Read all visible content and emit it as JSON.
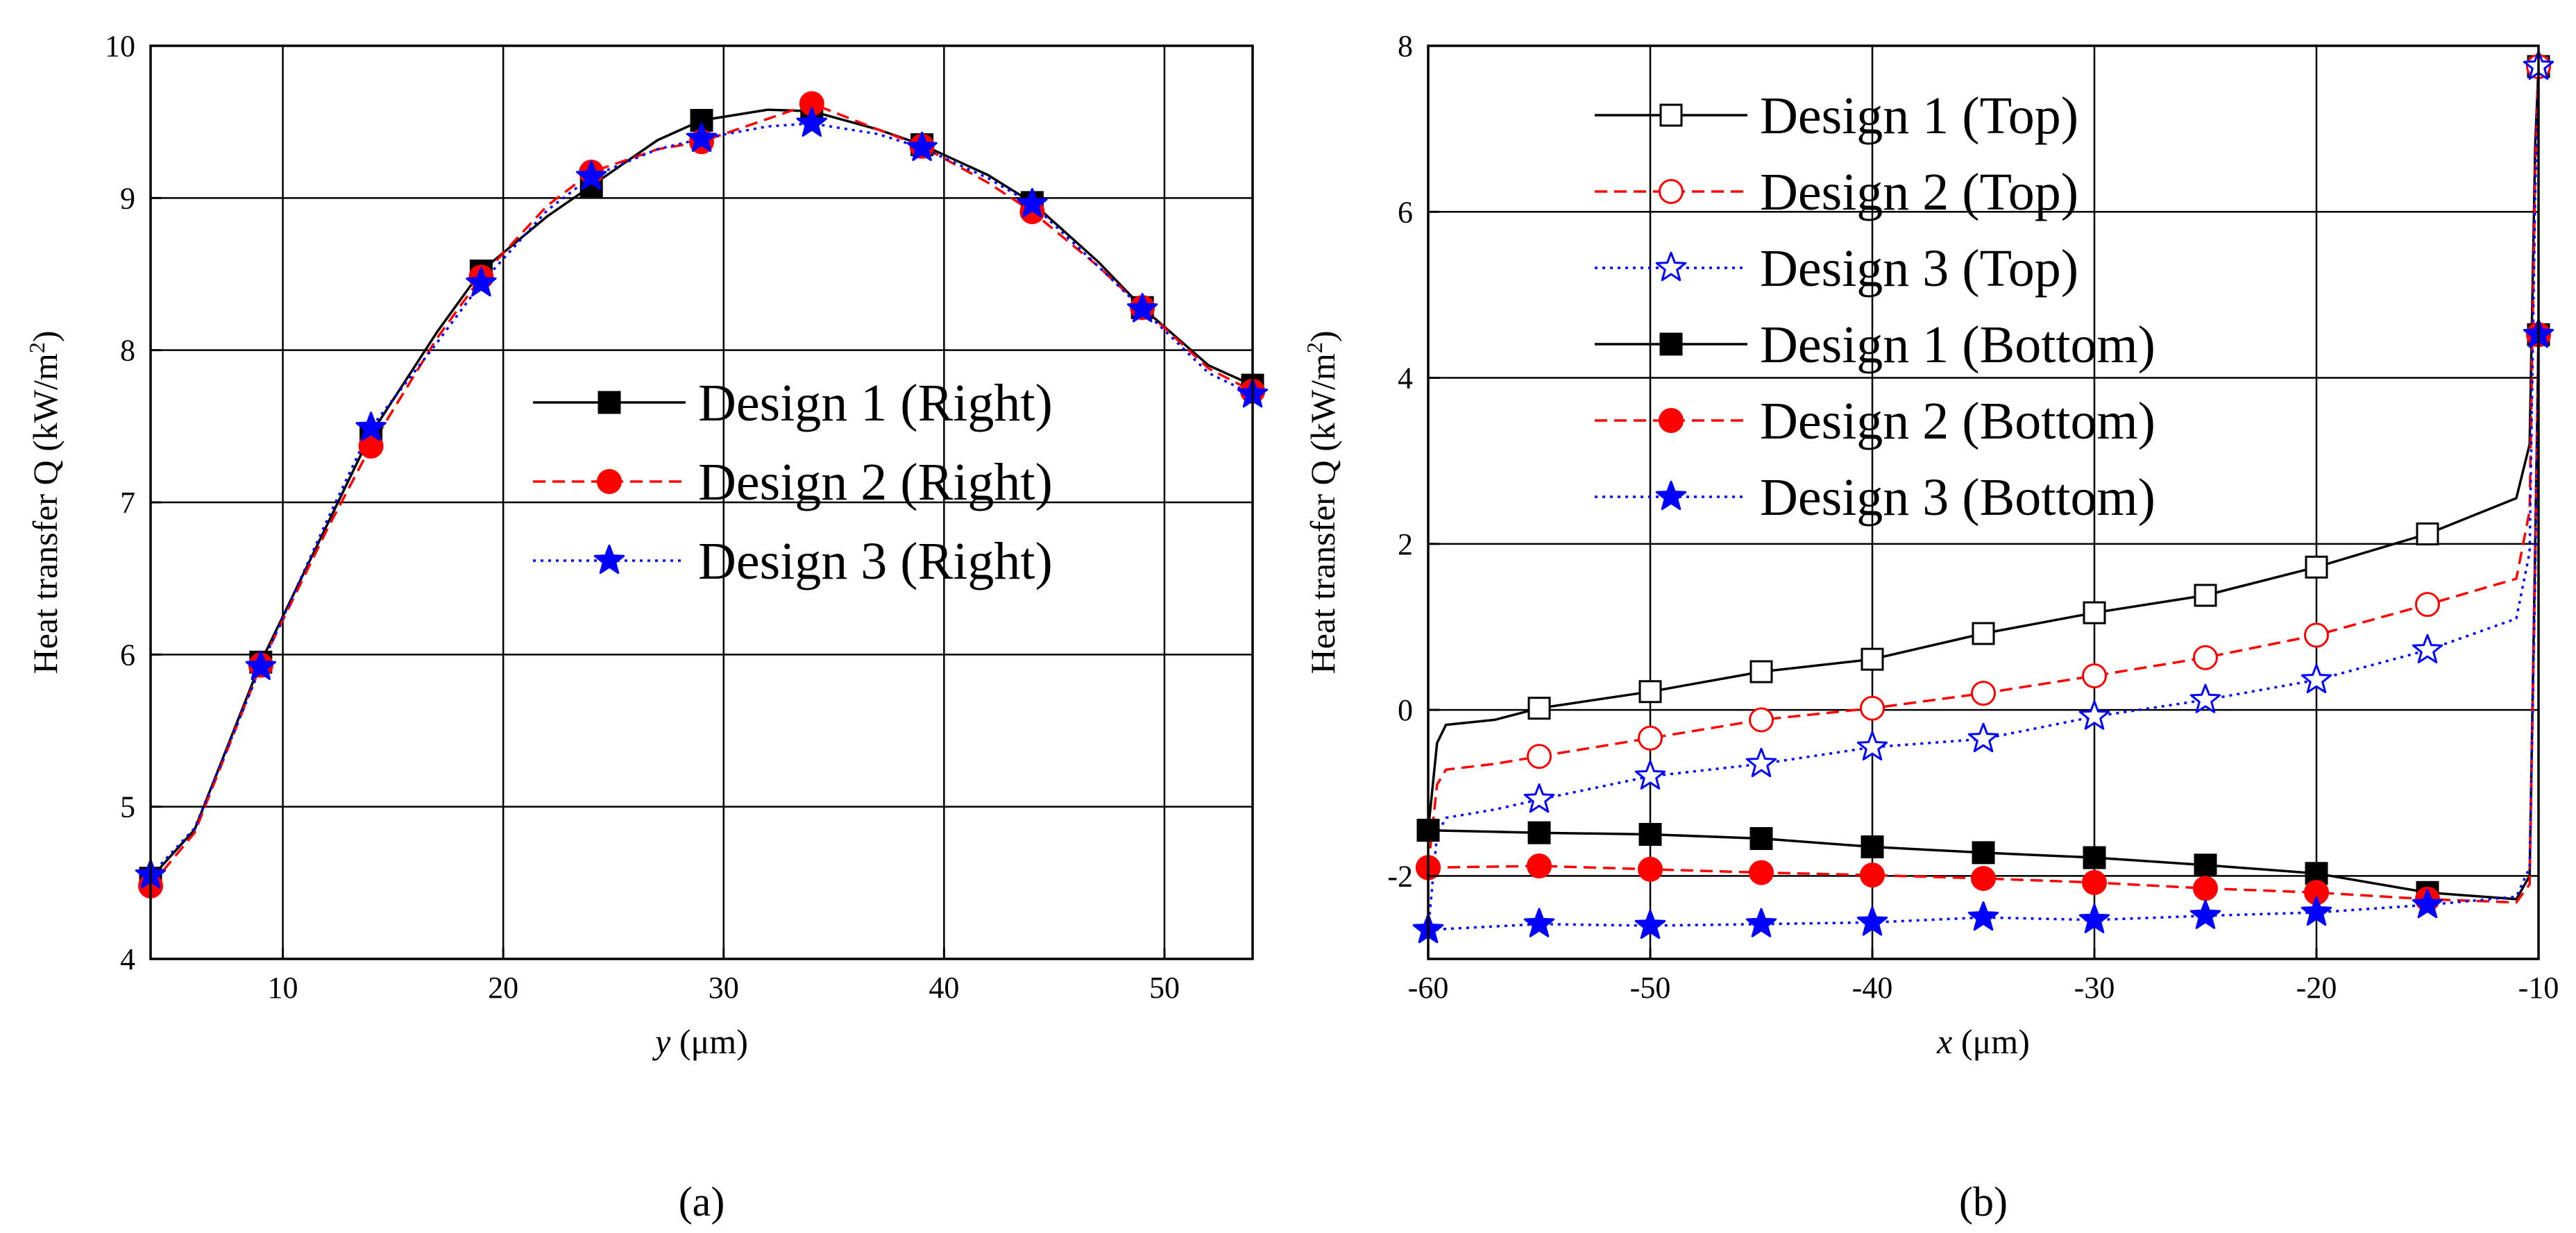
{
  "chart_data": [
    {
      "type": "line",
      "panel_label": "(a)",
      "xlabel_var": "y",
      "xlabel_unit": " (μm)",
      "ylabel": "Heat transfer Q (kW/m",
      "ylabel_sup": "2",
      "ylabel_close": ")",
      "xlim": [
        4,
        54
      ],
      "ylim": [
        4,
        10
      ],
      "xticks": [
        10,
        20,
        30,
        40,
        50
      ],
      "yticks": [
        4,
        5,
        6,
        7,
        8,
        9,
        10
      ],
      "grid": true,
      "legend_position": "center-right",
      "series": [
        {
          "name": "Design 1 (Right)",
          "color": "#000000",
          "dash": "solid",
          "marker": "square-filled",
          "x": [
            4,
            9,
            14,
            19,
            24,
            29,
            34,
            39,
            44,
            49,
            54
          ],
          "values": [
            4.53,
            5.95,
            7.45,
            8.52,
            9.08,
            9.51,
            9.57,
            9.35,
            8.97,
            8.28,
            7.77
          ],
          "curve": [
            [
              4,
              4.53
            ],
            [
              6,
              4.85
            ],
            [
              9,
              5.95
            ],
            [
              12,
              6.85
            ],
            [
              14,
              7.45
            ],
            [
              17,
              8.12
            ],
            [
              19,
              8.52
            ],
            [
              22,
              8.88
            ],
            [
              24,
              9.08
            ],
            [
              27,
              9.38
            ],
            [
              29,
              9.51
            ],
            [
              32,
              9.58
            ],
            [
              34,
              9.57
            ],
            [
              37,
              9.45
            ],
            [
              39,
              9.35
            ],
            [
              42,
              9.15
            ],
            [
              44,
              8.97
            ],
            [
              47,
              8.58
            ],
            [
              49,
              8.28
            ],
            [
              52,
              7.9
            ],
            [
              54,
              7.77
            ]
          ]
        },
        {
          "name": "Design 2 (Right)",
          "color": "#ff0000",
          "dash": "dashed",
          "marker": "circle-filled",
          "x": [
            4,
            9,
            14,
            19,
            24,
            29,
            34,
            39,
            44,
            49,
            54
          ],
          "values": [
            4.48,
            5.93,
            7.37,
            8.48,
            9.17,
            9.37,
            9.62,
            9.34,
            8.91,
            8.28,
            7.73
          ],
          "curve": [
            [
              4,
              4.48
            ],
            [
              6,
              4.83
            ],
            [
              9,
              5.93
            ],
            [
              12,
              6.82
            ],
            [
              14,
              7.37
            ],
            [
              17,
              8.08
            ],
            [
              19,
              8.48
            ],
            [
              22,
              8.95
            ],
            [
              24,
              9.17
            ],
            [
              27,
              9.32
            ],
            [
              29,
              9.37
            ],
            [
              32,
              9.52
            ],
            [
              34,
              9.62
            ],
            [
              37,
              9.45
            ],
            [
              39,
              9.34
            ],
            [
              42,
              9.1
            ],
            [
              44,
              8.91
            ],
            [
              47,
              8.55
            ],
            [
              49,
              8.28
            ],
            [
              52,
              7.88
            ],
            [
              54,
              7.73
            ]
          ]
        },
        {
          "name": "Design 3 (Right)",
          "color": "#0000ff",
          "dash": "dotted",
          "marker": "star-filled",
          "x": [
            4,
            9,
            14,
            19,
            24,
            29,
            34,
            39,
            44,
            49,
            54
          ],
          "values": [
            4.55,
            5.92,
            7.49,
            8.44,
            9.14,
            9.39,
            9.49,
            9.33,
            8.96,
            8.27,
            7.71
          ],
          "curve": [
            [
              4,
              4.55
            ],
            [
              6,
              4.86
            ],
            [
              9,
              5.92
            ],
            [
              12,
              6.88
            ],
            [
              14,
              7.49
            ],
            [
              17,
              8.05
            ],
            [
              19,
              8.44
            ],
            [
              22,
              8.92
            ],
            [
              24,
              9.14
            ],
            [
              27,
              9.32
            ],
            [
              29,
              9.39
            ],
            [
              32,
              9.47
            ],
            [
              34,
              9.49
            ],
            [
              37,
              9.42
            ],
            [
              39,
              9.33
            ],
            [
              42,
              9.13
            ],
            [
              44,
              8.96
            ],
            [
              47,
              8.55
            ],
            [
              49,
              8.27
            ],
            [
              52,
              7.85
            ],
            [
              54,
              7.71
            ]
          ]
        }
      ]
    },
    {
      "type": "line",
      "panel_label": "(b)",
      "xlabel_var": "x",
      "xlabel_unit": " (μm)",
      "ylabel": "Heat transfer Q (kW/m",
      "ylabel_sup": "2",
      "ylabel_close": ")",
      "xlim": [
        -60,
        -10
      ],
      "ylim": [
        -3,
        8
      ],
      "xticks": [
        -60,
        -50,
        -40,
        -30,
        -20,
        -10
      ],
      "yticks": [
        -2,
        0,
        2,
        4,
        6,
        8
      ],
      "grid": true,
      "legend_position": "top-left",
      "series": [
        {
          "name": "Design 1 (Top)",
          "color": "#000000",
          "dash": "solid",
          "marker": "square-open",
          "x": [
            -60,
            -55,
            -50,
            -45,
            -40,
            -35,
            -30,
            -25,
            -20,
            -15,
            -10
          ],
          "values": [
            -1.45,
            0.02,
            0.22,
            0.46,
            0.61,
            0.92,
            1.17,
            1.38,
            1.72,
            2.12,
            7.75
          ],
          "curve": [
            [
              -60,
              -1.45
            ],
            [
              -59.6,
              -0.4
            ],
            [
              -59.2,
              -0.18
            ],
            [
              -57,
              -0.12
            ],
            [
              -55,
              0.02
            ],
            [
              -50,
              0.22
            ],
            [
              -45,
              0.46
            ],
            [
              -40,
              0.61
            ],
            [
              -35,
              0.92
            ],
            [
              -30,
              1.17
            ],
            [
              -25,
              1.38
            ],
            [
              -20,
              1.72
            ],
            [
              -15,
              2.12
            ],
            [
              -11,
              2.55
            ],
            [
              -10.4,
              3.2
            ],
            [
              -10.15,
              6.8
            ],
            [
              -10,
              7.75
            ]
          ]
        },
        {
          "name": "Design 2 (Top)",
          "color": "#ff0000",
          "dash": "dashed",
          "marker": "circle-open",
          "x": [
            -60,
            -55,
            -50,
            -45,
            -40,
            -35,
            -30,
            -25,
            -20,
            -15,
            -10
          ],
          "values": [
            -1.9,
            -0.56,
            -0.34,
            -0.12,
            0.02,
            0.2,
            0.41,
            0.63,
            0.9,
            1.27,
            7.75
          ],
          "curve": [
            [
              -60,
              -1.9
            ],
            [
              -59.6,
              -0.9
            ],
            [
              -59.2,
              -0.72
            ],
            [
              -57,
              -0.65
            ],
            [
              -55,
              -0.56
            ],
            [
              -50,
              -0.34
            ],
            [
              -45,
              -0.12
            ],
            [
              -40,
              0.02
            ],
            [
              -35,
              0.2
            ],
            [
              -30,
              0.41
            ],
            [
              -25,
              0.63
            ],
            [
              -20,
              0.9
            ],
            [
              -15,
              1.27
            ],
            [
              -11,
              1.58
            ],
            [
              -10.4,
              2.4
            ],
            [
              -10.15,
              6.5
            ],
            [
              -10,
              7.75
            ]
          ]
        },
        {
          "name": "Design 3 (Top)",
          "color": "#0000ff",
          "dash": "dotted",
          "marker": "star-open",
          "x": [
            -60,
            -55,
            -50,
            -45,
            -40,
            -35,
            -30,
            -25,
            -20,
            -15,
            -10
          ],
          "values": [
            -2.65,
            -1.08,
            -0.8,
            -0.65,
            -0.45,
            -0.35,
            -0.08,
            0.12,
            0.36,
            0.72,
            7.75
          ],
          "curve": [
            [
              -60,
              -2.65
            ],
            [
              -59.6,
              -1.5
            ],
            [
              -59.2,
              -1.3
            ],
            [
              -57,
              -1.2
            ],
            [
              -55,
              -1.08
            ],
            [
              -50,
              -0.8
            ],
            [
              -45,
              -0.65
            ],
            [
              -40,
              -0.45
            ],
            [
              -35,
              -0.35
            ],
            [
              -30,
              -0.08
            ],
            [
              -25,
              0.12
            ],
            [
              -20,
              0.36
            ],
            [
              -15,
              0.72
            ],
            [
              -11,
              1.1
            ],
            [
              -10.4,
              1.9
            ],
            [
              -10.15,
              6.2
            ],
            [
              -10,
              7.75
            ]
          ]
        },
        {
          "name": "Design 1 (Bottom)",
          "color": "#000000",
          "dash": "solid",
          "marker": "square-filled",
          "x": [
            -60,
            -55,
            -50,
            -45,
            -40,
            -35,
            -30,
            -25,
            -20,
            -15,
            -10
          ],
          "values": [
            -1.45,
            -1.48,
            -1.5,
            -1.55,
            -1.65,
            -1.72,
            -1.78,
            -1.87,
            -1.97,
            -2.2,
            4.52
          ],
          "curve": [
            [
              -60,
              -1.45
            ],
            [
              -55,
              -1.48
            ],
            [
              -50,
              -1.5
            ],
            [
              -45,
              -1.55
            ],
            [
              -40,
              -1.65
            ],
            [
              -35,
              -1.72
            ],
            [
              -30,
              -1.78
            ],
            [
              -25,
              -1.87
            ],
            [
              -20,
              -1.97
            ],
            [
              -15,
              -2.2
            ],
            [
              -11,
              -2.28
            ],
            [
              -10.4,
              -2.0
            ],
            [
              -10.15,
              2.0
            ],
            [
              -10,
              4.52
            ]
          ]
        },
        {
          "name": "Design 2 (Bottom)",
          "color": "#ff0000",
          "dash": "dashed",
          "marker": "circle-filled",
          "x": [
            -60,
            -55,
            -50,
            -45,
            -40,
            -35,
            -30,
            -25,
            -20,
            -15,
            -10
          ],
          "values": [
            -1.9,
            -1.88,
            -1.92,
            -1.96,
            -1.99,
            -2.03,
            -2.08,
            -2.15,
            -2.2,
            -2.28,
            4.52
          ],
          "curve": [
            [
              -60,
              -1.9
            ],
            [
              -55,
              -1.88
            ],
            [
              -50,
              -1.92
            ],
            [
              -45,
              -1.96
            ],
            [
              -40,
              -1.99
            ],
            [
              -35,
              -2.03
            ],
            [
              -30,
              -2.08
            ],
            [
              -25,
              -2.15
            ],
            [
              -20,
              -2.2
            ],
            [
              -15,
              -2.28
            ],
            [
              -11,
              -2.32
            ],
            [
              -10.4,
              -2.1
            ],
            [
              -10.15,
              1.8
            ],
            [
              -10,
              4.52
            ]
          ]
        },
        {
          "name": "Design 3 (Bottom)",
          "color": "#0000ff",
          "dash": "dotted",
          "marker": "star-filled",
          "x": [
            -60,
            -55,
            -50,
            -45,
            -40,
            -35,
            -30,
            -25,
            -20,
            -15,
            -10
          ],
          "values": [
            -2.65,
            -2.58,
            -2.6,
            -2.58,
            -2.56,
            -2.5,
            -2.53,
            -2.48,
            -2.44,
            -2.35,
            4.52
          ],
          "curve": [
            [
              -60,
              -2.65
            ],
            [
              -55,
              -2.58
            ],
            [
              -50,
              -2.6
            ],
            [
              -45,
              -2.58
            ],
            [
              -40,
              -2.56
            ],
            [
              -35,
              -2.5
            ],
            [
              -30,
              -2.53
            ],
            [
              -25,
              -2.48
            ],
            [
              -20,
              -2.44
            ],
            [
              -15,
              -2.35
            ],
            [
              -11,
              -2.25
            ],
            [
              -10.4,
              -1.9
            ],
            [
              -10.15,
              1.6
            ],
            [
              -10,
              4.52
            ]
          ]
        }
      ]
    }
  ]
}
